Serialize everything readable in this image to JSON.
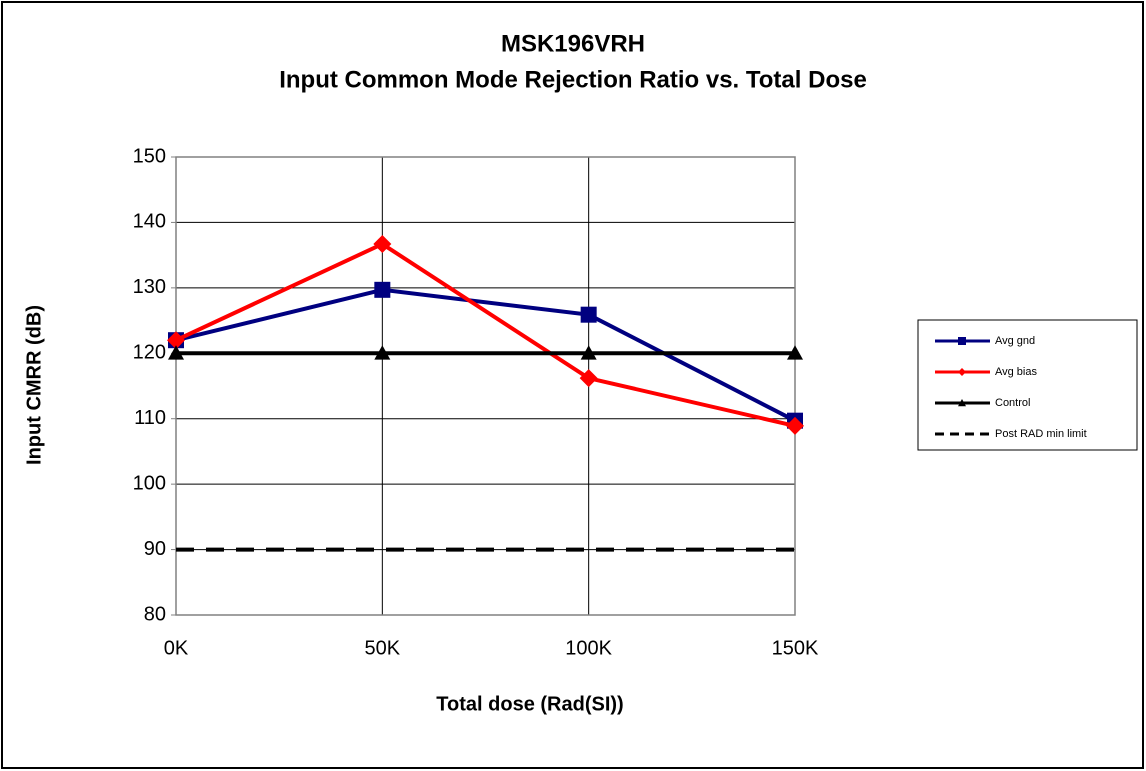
{
  "chart_data": {
    "type": "line",
    "title": "MSK196VRH",
    "subtitle": "Input Common Mode Rejection Ratio vs. Total Dose",
    "x_label": "Total dose (Rad(SI))",
    "y_label": "Input CMRR (dB)",
    "categories": [
      "0K",
      "50K",
      "100K",
      "150K"
    ],
    "series": [
      {
        "name": "Avg gnd",
        "color": "#000080",
        "marker": "square",
        "dash": false,
        "values": [
          122.0,
          129.7,
          125.9,
          109.7
        ]
      },
      {
        "name": "Avg bias",
        "color": "#ff0000",
        "marker": "diamond",
        "dash": false,
        "values": [
          122.0,
          136.7,
          116.2,
          108.9
        ]
      },
      {
        "name": "Control",
        "color": "#000000",
        "marker": "triangle",
        "dash": false,
        "values": [
          120,
          120,
          120,
          120
        ]
      },
      {
        "name": "Post RAD min limit",
        "color": "#000000",
        "marker": "none",
        "dash": true,
        "values": [
          90,
          90,
          90,
          90
        ]
      }
    ],
    "ylim": [
      80,
      150
    ],
    "yticks": [
      80,
      90,
      100,
      110,
      120,
      130,
      140,
      150
    ],
    "grid": true,
    "legend": "right"
  }
}
